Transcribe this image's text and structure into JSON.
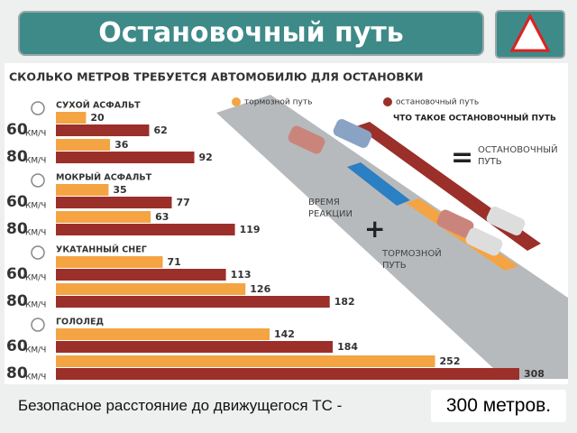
{
  "header": {
    "title": "Остановочный путь"
  },
  "chart_data": {
    "type": "bar",
    "title": "СКОЛЬКО МЕТРОВ ТРЕБУЕТСЯ АВТОМОБИЛЮ ДЛЯ ОСТАНОВКИ",
    "groups": [
      "СУХОЙ АСФАЛЬТ",
      "МОКРЫЙ АСФАЛЬТ",
      "УКАТАННЫЙ СНЕГ",
      "ГОЛОЛЕД"
    ],
    "categories": [
      "60",
      "80",
      "60",
      "80",
      "60",
      "80",
      "60",
      "80"
    ],
    "speed_unit": "КМ/Ч",
    "series": [
      {
        "name": "тормозной путь",
        "color": "#f4a443",
        "values": [
          20,
          36,
          35,
          63,
          71,
          126,
          142,
          252
        ]
      },
      {
        "name": "остановочный путь",
        "color": "#9b2f2a",
        "values": [
          62,
          92,
          77,
          119,
          113,
          182,
          184,
          308
        ]
      }
    ],
    "diagram": {
      "title": "ЧТО ТАКОЕ ОСТАНОВОЧНЫЙ ПУТЬ",
      "equals": "=",
      "stopping": "ОСТАНОВОЧНЫЙ ПУТЬ",
      "reaction": "ВРЕМЯ РЕАКЦИИ",
      "plus": "+",
      "braking": "ТОРМОЗНОЙ ПУТЬ"
    }
  },
  "footer": {
    "text": "Безопасное расстояние до движущегося ТС - ",
    "highlight": "300 метров."
  }
}
